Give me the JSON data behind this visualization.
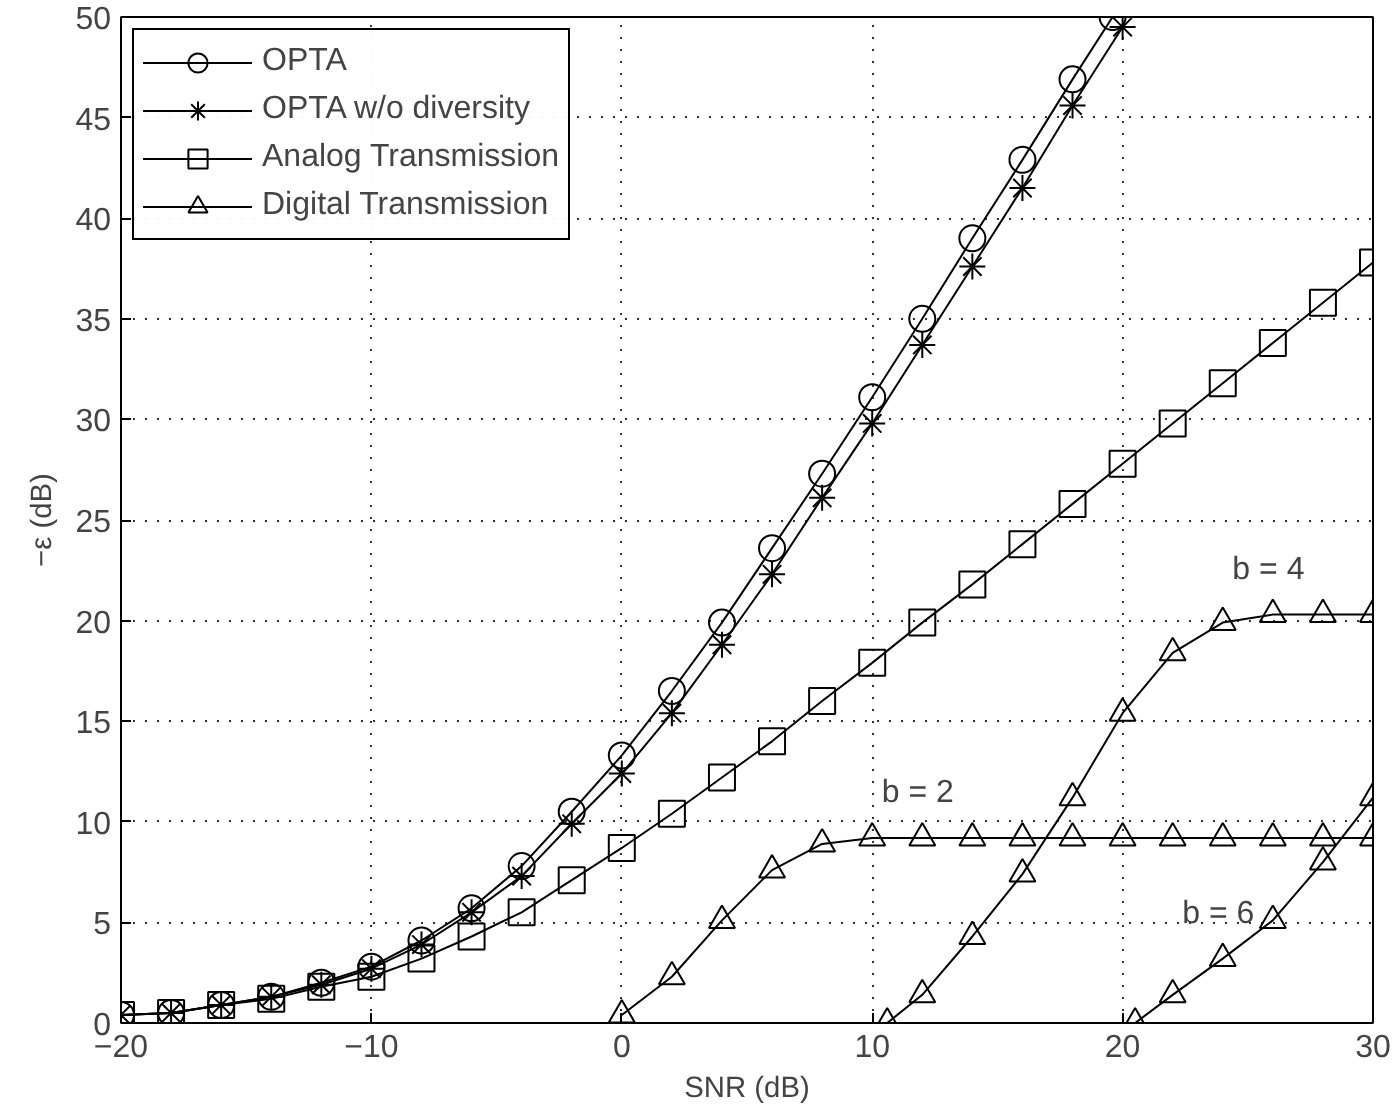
{
  "chart_data": {
    "type": "line",
    "xlabel": "SNR (dB)",
    "ylabel": "−ε (dB)",
    "xlim": [
      -20,
      30
    ],
    "ylim": [
      0,
      50
    ],
    "xticks": [
      -20,
      -10,
      0,
      10,
      20,
      30
    ],
    "yticks": [
      0,
      5,
      10,
      15,
      20,
      25,
      30,
      35,
      40,
      45,
      50
    ],
    "grid": true,
    "legend": "top left",
    "line_style": "solid",
    "series": [
      {
        "name": "OPTA",
        "color": "#000000",
        "marker": "circle",
        "x": [
          -20,
          -18,
          -16,
          -14,
          -12,
          -10,
          -8,
          -6,
          -4,
          -2,
          0,
          2,
          4,
          6,
          8,
          10,
          12,
          14,
          16,
          18,
          19.6
        ],
        "values": [
          0.4,
          0.5,
          0.9,
          1.3,
          2.0,
          2.8,
          4.1,
          5.7,
          7.8,
          10.5,
          13.3,
          16.5,
          19.9,
          23.6,
          27.3,
          31.1,
          35.0,
          39.0,
          42.9,
          46.9,
          50
        ]
      },
      {
        "name": "OPTA w/o diversity",
        "color": "#000000",
        "marker": "cross",
        "x": [
          -20,
          -18,
          -16,
          -14,
          -12,
          -10,
          -8,
          -6,
          -4,
          -2,
          0,
          2,
          4,
          6,
          8,
          10,
          12,
          14,
          16,
          18,
          20
        ],
        "values": [
          0.4,
          0.5,
          0.9,
          1.3,
          1.9,
          2.7,
          3.9,
          5.5,
          7.3,
          9.9,
          12.4,
          15.4,
          18.8,
          22.3,
          26.1,
          29.8,
          33.7,
          37.6,
          41.5,
          45.6,
          49.5
        ]
      },
      {
        "name": "Analog Transmission",
        "color": "#000000",
        "marker": "square",
        "x": [
          -20,
          -18,
          -16,
          -14,
          -12,
          -10,
          -8,
          -6,
          -4,
          -2,
          0,
          2,
          4,
          6,
          8,
          10,
          12,
          14,
          16,
          18,
          20,
          22,
          24,
          26,
          28,
          30
        ],
        "values": [
          0.4,
          0.5,
          0.9,
          1.2,
          1.8,
          2.3,
          3.2,
          4.3,
          5.5,
          7.1,
          8.7,
          10.4,
          12.2,
          14.0,
          16.0,
          17.9,
          19.9,
          21.8,
          23.8,
          25.8,
          27.8,
          29.8,
          31.8,
          33.8,
          35.8,
          37.8
        ]
      },
      {
        "name": "Digital Transmission",
        "color": "#000000",
        "marker": "triangle",
        "x": [
          0,
          2,
          4,
          6,
          8,
          10,
          12,
          14,
          16,
          18,
          20,
          22,
          24,
          26,
          28,
          30
        ],
        "values": [
          0.4,
          2.3,
          5.1,
          7.6,
          8.9,
          9.2,
          9.2,
          9.2,
          9.2,
          9.2,
          9.2,
          9.2,
          9.2,
          9.2,
          9.2,
          9.2
        ]
      },
      {
        "color": "#000000",
        "marker": "triangle",
        "x": [
          10.6,
          12,
          14,
          16,
          18,
          20,
          22,
          24,
          26,
          28,
          30
        ],
        "values": [
          0,
          1.4,
          4.3,
          7.4,
          11.2,
          15.4,
          18.4,
          19.9,
          20.3,
          20.3,
          20.3
        ]
      },
      {
        "color": "#000000",
        "marker": "triangle",
        "x": [
          20.5,
          22,
          24,
          26,
          28,
          30
        ],
        "values": [
          0,
          1.4,
          3.2,
          5.1,
          8.0,
          11.2
        ]
      }
    ],
    "annotations": [
      {
        "text": "b =  4",
        "x": 26,
        "y": 20.3
      },
      {
        "text": "b =  2",
        "x": 12,
        "y": 9.2
      },
      {
        "text": "b =  6",
        "x": 24,
        "y": 3.2
      }
    ]
  }
}
